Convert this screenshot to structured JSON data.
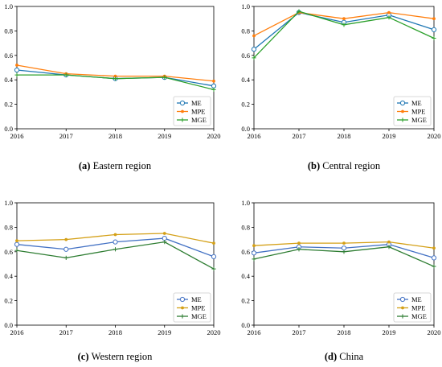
{
  "chart_data": [
    {
      "type": "line",
      "caption_label": "(a)",
      "caption_text": "Eastern region",
      "x": [
        2016,
        2017,
        2018,
        2019,
        2020
      ],
      "ylim": [
        0,
        1.0
      ],
      "yticks": [
        "0.0",
        "0.2",
        "0.4",
        "0.6",
        "0.8",
        "1.0"
      ],
      "xticks": [
        "2016",
        "2017",
        "2018",
        "2019",
        "2020"
      ],
      "grid": false,
      "legend": "bottom-right",
      "series": [
        {
          "name": "ME",
          "color": "#1f77b4",
          "marker": "circle",
          "values": [
            0.48,
            0.44,
            0.41,
            0.42,
            0.35
          ]
        },
        {
          "name": "MPE",
          "color": "#ff7f0e",
          "marker": "dot",
          "values": [
            0.52,
            0.45,
            0.43,
            0.43,
            0.39
          ]
        },
        {
          "name": "MGE",
          "color": "#2ca02c",
          "marker": "plus",
          "values": [
            0.44,
            0.44,
            0.41,
            0.42,
            0.32
          ]
        }
      ]
    },
    {
      "type": "line",
      "caption_label": "(b)",
      "caption_text": "Central region",
      "x": [
        2016,
        2017,
        2018,
        2019,
        2020
      ],
      "ylim": [
        0,
        1.0
      ],
      "yticks": [
        "0.0",
        "0.2",
        "0.4",
        "0.6",
        "0.8",
        "1.0"
      ],
      "xticks": [
        "2016",
        "2017",
        "2018",
        "2019",
        "2020"
      ],
      "grid": false,
      "legend": "bottom-right",
      "series": [
        {
          "name": "ME",
          "color": "#1f77b4",
          "marker": "circle",
          "values": [
            0.65,
            0.95,
            0.87,
            0.93,
            0.81
          ]
        },
        {
          "name": "MPE",
          "color": "#ff7f0e",
          "marker": "dot",
          "values": [
            0.76,
            0.95,
            0.9,
            0.95,
            0.9
          ]
        },
        {
          "name": "MGE",
          "color": "#2ca02c",
          "marker": "plus",
          "values": [
            0.58,
            0.96,
            0.85,
            0.91,
            0.74
          ]
        }
      ]
    },
    {
      "type": "line",
      "caption_label": "(c)",
      "caption_text": "Western region",
      "x": [
        2016,
        2017,
        2018,
        2019,
        2020
      ],
      "ylim": [
        0,
        1.0
      ],
      "yticks": [
        "0.0",
        "0.2",
        "0.4",
        "0.6",
        "0.8",
        "1.0"
      ],
      "xticks": [
        "2016",
        "2017",
        "2018",
        "2019",
        "2020"
      ],
      "grid": false,
      "legend": "bottom-right",
      "series": [
        {
          "name": "ME",
          "color": "#4472c4",
          "marker": "circle",
          "values": [
            0.66,
            0.62,
            0.68,
            0.71,
            0.56
          ]
        },
        {
          "name": "MPE",
          "color": "#d4a017",
          "marker": "dot",
          "values": [
            0.69,
            0.7,
            0.74,
            0.75,
            0.67
          ]
        },
        {
          "name": "MGE",
          "color": "#2e7d32",
          "marker": "plus",
          "values": [
            0.61,
            0.55,
            0.62,
            0.68,
            0.46
          ]
        }
      ]
    },
    {
      "type": "line",
      "caption_label": "(d)",
      "caption_text": "China",
      "x": [
        2016,
        2017,
        2018,
        2019,
        2020
      ],
      "ylim": [
        0,
        1.0
      ],
      "yticks": [
        "0.0",
        "0.2",
        "0.4",
        "0.6",
        "0.8",
        "1.0"
      ],
      "xticks": [
        "2016",
        "2017",
        "2018",
        "2019",
        "2020"
      ],
      "grid": false,
      "legend": "bottom-right",
      "series": [
        {
          "name": "ME",
          "color": "#4472c4",
          "marker": "circle",
          "values": [
            0.59,
            0.64,
            0.63,
            0.66,
            0.55
          ]
        },
        {
          "name": "MPE",
          "color": "#d4a017",
          "marker": "dot",
          "values": [
            0.65,
            0.67,
            0.67,
            0.68,
            0.63
          ]
        },
        {
          "name": "MGE",
          "color": "#2e7d32",
          "marker": "plus",
          "values": [
            0.54,
            0.62,
            0.6,
            0.64,
            0.48
          ]
        }
      ]
    }
  ]
}
